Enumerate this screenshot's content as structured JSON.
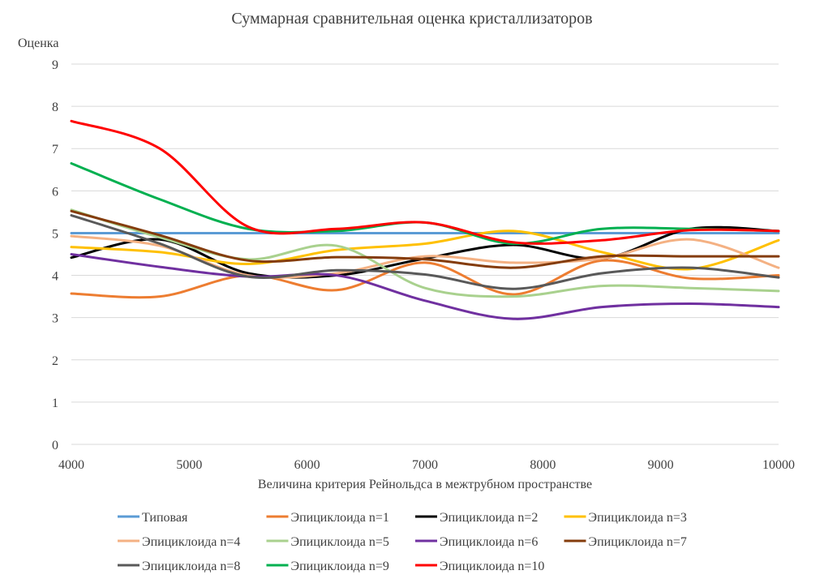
{
  "chart_data": {
    "type": "line",
    "title": "Суммарная сравнительная оценка кристаллизаторов",
    "xlabel": "Величина критерия Рейнольдса в межтрубном пространстве",
    "ylabel": "Оценка",
    "xlim": [
      4000,
      10000
    ],
    "ylim": [
      0,
      9
    ],
    "xticks": [
      4000,
      5000,
      6000,
      7000,
      8000,
      9000,
      10000
    ],
    "yticks": [
      0,
      1,
      2,
      3,
      4,
      5,
      6,
      7,
      8,
      9
    ],
    "grid": true,
    "smooth": true,
    "legend_position": "bottom",
    "x": [
      4000,
      4750,
      5500,
      6250,
      7000,
      7750,
      8500,
      9250,
      10000
    ],
    "series": [
      {
        "name": "Типовая",
        "color": "#5b9bd5",
        "values": [
          5,
          5,
          5,
          5,
          5,
          5,
          5,
          5,
          5
        ]
      },
      {
        "name": "Эпициклоида n=1",
        "color": "#ed7d31",
        "values": [
          3.57,
          3.5,
          4.0,
          3.65,
          4.3,
          3.55,
          4.35,
          3.93,
          4.0
        ]
      },
      {
        "name": "Эпициклоида n=2",
        "color": "#000000",
        "values": [
          4.42,
          4.85,
          4.05,
          4.0,
          4.4,
          4.72,
          4.4,
          5.1,
          5.05
        ]
      },
      {
        "name": "Эпициклоида n=3",
        "color": "#ffc000",
        "values": [
          4.67,
          4.55,
          4.27,
          4.6,
          4.75,
          5.05,
          4.55,
          4.15,
          4.83
        ]
      },
      {
        "name": "Эпициклоида n=4",
        "color": "#f4b183",
        "values": [
          4.93,
          4.7,
          4.0,
          4.05,
          4.45,
          4.3,
          4.4,
          4.85,
          4.18
        ]
      },
      {
        "name": "Эпициклоида n=5",
        "color": "#a9d18e",
        "values": [
          5.55,
          4.9,
          4.38,
          4.7,
          3.7,
          3.5,
          3.75,
          3.7,
          3.63
        ]
      },
      {
        "name": "Эпициклоида n=6",
        "color": "#7030a0",
        "values": [
          4.5,
          4.2,
          3.97,
          4.0,
          3.4,
          2.97,
          3.25,
          3.33,
          3.25
        ]
      },
      {
        "name": "Эпициклоида n=7",
        "color": "#843c0c",
        "values": [
          5.52,
          4.95,
          4.35,
          4.43,
          4.38,
          4.18,
          4.45,
          4.45,
          4.45
        ]
      },
      {
        "name": "Эпициклоида n=8",
        "color": "#595959",
        "values": [
          5.42,
          4.75,
          3.97,
          4.12,
          4.02,
          3.68,
          4.05,
          4.18,
          3.95
        ]
      },
      {
        "name": "Эпициклоида n=9",
        "color": "#00b050",
        "values": [
          6.65,
          5.8,
          5.1,
          5.05,
          5.25,
          4.75,
          5.1,
          5.1,
          5.05
        ]
      },
      {
        "name": "Эпициклоида n=10",
        "color": "#ff0000",
        "values": [
          7.65,
          7.0,
          5.15,
          5.1,
          5.25,
          4.78,
          4.83,
          5.07,
          5.05
        ]
      }
    ]
  }
}
